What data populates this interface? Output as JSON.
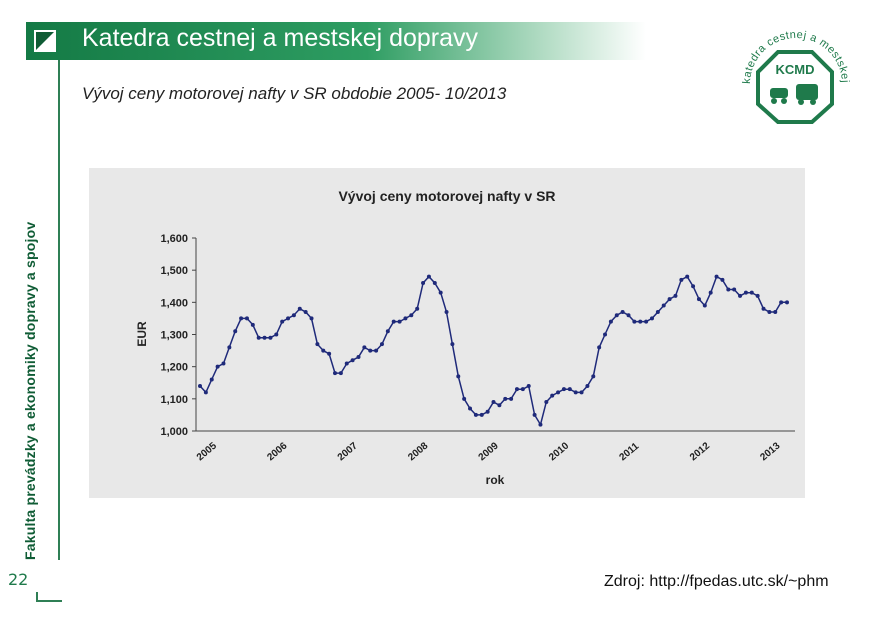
{
  "header": {
    "title": "Katedra cestnej a mestskej dopravy"
  },
  "subtitle": "Vývoj ceny motorovej nafty v SR obdobie 2005- 10/2013",
  "sidebar": {
    "vertical_text": "Fakulta prevádzky a ekonomiky dopravy a spojov"
  },
  "page_number": "22",
  "source": "Zdroj: http://fpedas.utc.sk/~phm",
  "logo": {
    "top_text": "katedra cestnej a mestskej dopravy",
    "center": "KCMD"
  },
  "colors": {
    "green": "#147a45",
    "series": "#1f2a7a"
  },
  "chart_data": {
    "type": "line",
    "title": "Vývoj ceny motorovej nafty v SR",
    "xlabel": "rok",
    "ylabel": "EUR",
    "ylim": [
      1.0,
      1.6
    ],
    "yticks": [
      "1,000",
      "1,100",
      "1,200",
      "1,300",
      "1,400",
      "1,500",
      "1,600"
    ],
    "xticks": [
      "2005",
      "2006",
      "2007",
      "2008",
      "2009",
      "2010",
      "2011",
      "2012",
      "2013"
    ],
    "grid": false,
    "series": [
      {
        "values": [
          1.14,
          1.12,
          1.16,
          1.2,
          1.21,
          1.26,
          1.31,
          1.35,
          1.35,
          1.33,
          1.29,
          1.29,
          1.29,
          1.3,
          1.34,
          1.35,
          1.36,
          1.38,
          1.37,
          1.35,
          1.27,
          1.25,
          1.24,
          1.18,
          1.18,
          1.21,
          1.22,
          1.23,
          1.26,
          1.25,
          1.25,
          1.27,
          1.31,
          1.34,
          1.34,
          1.35,
          1.36,
          1.38,
          1.46,
          1.48,
          1.46,
          1.43,
          1.37,
          1.27,
          1.17,
          1.1,
          1.07,
          1.05,
          1.05,
          1.06,
          1.09,
          1.08,
          1.1,
          1.1,
          1.13,
          1.13,
          1.14,
          1.05,
          1.02,
          1.09,
          1.11,
          1.12,
          1.13,
          1.13,
          1.12,
          1.12,
          1.14,
          1.17,
          1.26,
          1.3,
          1.34,
          1.36,
          1.37,
          1.36,
          1.34,
          1.34,
          1.34,
          1.35,
          1.37,
          1.39,
          1.41,
          1.42,
          1.47,
          1.48,
          1.45,
          1.41,
          1.39,
          1.43,
          1.48,
          1.47,
          1.44,
          1.44,
          1.42,
          1.43,
          1.43,
          1.42,
          1.38,
          1.37,
          1.37,
          1.4,
          1.4
        ]
      }
    ]
  }
}
